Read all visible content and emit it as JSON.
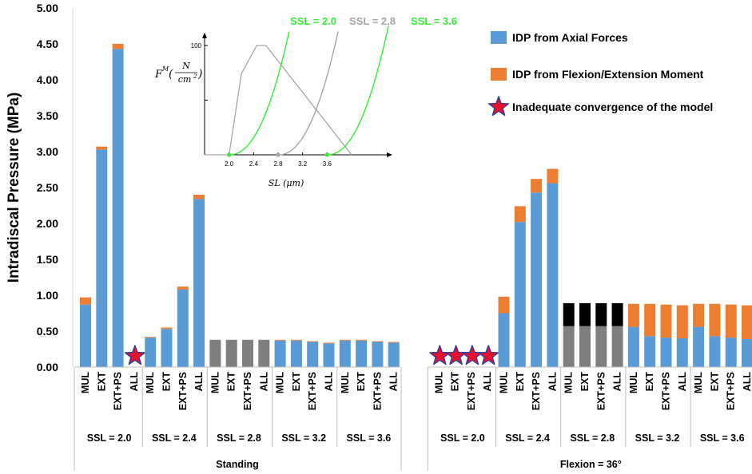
{
  "chart_data": {
    "type": "bar",
    "stacked": true,
    "ylabel": "Intradiscal Pressure (MPa)",
    "ylim": [
      0,
      5
    ],
    "yticks": [
      "0.00",
      "0.50",
      "1.00",
      "1.50",
      "2.00",
      "2.50",
      "3.00",
      "3.50",
      "4.00",
      "4.50",
      "5.00"
    ],
    "categories": [
      "MUL",
      "EXT",
      "EXT+PS",
      "ALL"
    ],
    "conditions": [
      {
        "name": "Standing",
        "groups": [
          {
            "label": "SSL = 2.0",
            "bars": [
              {
                "axial": 0.87,
                "moment": 0.1
              },
              {
                "axial": 3.03,
                "moment": 0.04
              },
              {
                "axial": 4.43,
                "moment": 0.07
              },
              {
                "inadequate": true
              }
            ]
          },
          {
            "label": "SSL = 2.4",
            "bars": [
              {
                "axial": 0.41,
                "moment": 0.01
              },
              {
                "axial": 0.53,
                "moment": 0.02
              },
              {
                "axial": 1.08,
                "moment": 0.04
              },
              {
                "axial": 2.34,
                "moment": 0.06
              }
            ]
          },
          {
            "label": "SSL = 2.8",
            "bars": [
              {
                "axial": 0.38,
                "moment": 0.0,
                "gray": true
              },
              {
                "axial": 0.38,
                "moment": 0.0,
                "gray": true
              },
              {
                "axial": 0.38,
                "moment": 0.0,
                "gray": true
              },
              {
                "axial": 0.38,
                "moment": 0.0,
                "gray": true
              }
            ]
          },
          {
            "label": "SSL = 3.2",
            "bars": [
              {
                "axial": 0.37,
                "moment": 0.01
              },
              {
                "axial": 0.37,
                "moment": 0.01
              },
              {
                "axial": 0.35,
                "moment": 0.01
              },
              {
                "axial": 0.33,
                "moment": 0.01
              }
            ]
          },
          {
            "label": "SSL = 3.6",
            "bars": [
              {
                "axial": 0.37,
                "moment": 0.01
              },
              {
                "axial": 0.37,
                "moment": 0.01
              },
              {
                "axial": 0.35,
                "moment": 0.01
              },
              {
                "axial": 0.34,
                "moment": 0.01
              }
            ]
          }
        ]
      },
      {
        "name": "Flexion = 36°",
        "groups": [
          {
            "label": "SSL = 2.0",
            "bars": [
              {
                "inadequate": true
              },
              {
                "inadequate": true
              },
              {
                "inadequate": true
              },
              {
                "inadequate": true
              }
            ]
          },
          {
            "label": "SSL = 2.4",
            "bars": [
              {
                "axial": 0.75,
                "moment": 0.23
              },
              {
                "axial": 2.02,
                "moment": 0.22
              },
              {
                "axial": 2.43,
                "moment": 0.19
              },
              {
                "axial": 2.56,
                "moment": 0.2
              }
            ]
          },
          {
            "label": "SSL = 2.8",
            "bars": [
              {
                "axial": 0.57,
                "moment": 0.32,
                "gray": true
              },
              {
                "axial": 0.57,
                "moment": 0.32,
                "gray": true
              },
              {
                "axial": 0.57,
                "moment": 0.32,
                "gray": true
              },
              {
                "axial": 0.57,
                "moment": 0.32,
                "gray": true
              }
            ]
          },
          {
            "label": "SSL = 3.2",
            "bars": [
              {
                "axial": 0.56,
                "moment": 0.32
              },
              {
                "axial": 0.43,
                "moment": 0.45
              },
              {
                "axial": 0.41,
                "moment": 0.46
              },
              {
                "axial": 0.4,
                "moment": 0.46
              }
            ]
          },
          {
            "label": "SSL = 3.6",
            "bars": [
              {
                "axial": 0.56,
                "moment": 0.32
              },
              {
                "axial": 0.43,
                "moment": 0.45
              },
              {
                "axial": 0.41,
                "moment": 0.46
              },
              {
                "axial": 0.39,
                "moment": 0.47
              }
            ]
          }
        ]
      }
    ],
    "legend": [
      {
        "key": "axial",
        "label": "IDP from Axial Forces",
        "color": "#5b9bd5"
      },
      {
        "key": "moment",
        "label": "IDP from Flexion/Extension Moment",
        "color": "#ed7d31"
      },
      {
        "key": "inadequate",
        "label": "Inadequate convergence of the model",
        "color": "#e8112d"
      }
    ],
    "inset": {
      "ylabel_main": "F",
      "ylabel_sup": "M",
      "ylabel_num": "N",
      "ylabel_den": "cm",
      "ylabel_den_sup": "2",
      "ymax_label": "100",
      "xlabel": "SL (μm)",
      "xticks": [
        "2.0",
        "2.4",
        "2.8",
        "3.2",
        "3.6"
      ],
      "xrange": [
        1.6,
        4.6
      ],
      "force_length": [
        [
          1.6,
          0
        ],
        [
          2.0,
          0
        ],
        [
          2.2,
          74
        ],
        [
          2.45,
          100
        ],
        [
          2.6,
          100
        ],
        [
          4.0,
          0
        ]
      ],
      "passive_curves": [
        {
          "label": "SSL = 2.0",
          "ssl": 2.0,
          "color": "#33ee33"
        },
        {
          "label": "SSL = 2.8",
          "ssl": 2.8,
          "color": "#a6a6a6"
        },
        {
          "label": "SSL = 3.6",
          "ssl": 3.6,
          "color": "#33ee33"
        }
      ]
    }
  },
  "colors": {
    "axial": "#5b9bd5",
    "moment": "#ed7d31",
    "gray_axial": "#7f7f7f",
    "gray_moment": "#000000",
    "star": "#e8112d",
    "star_stroke": "#2f3fa0"
  }
}
